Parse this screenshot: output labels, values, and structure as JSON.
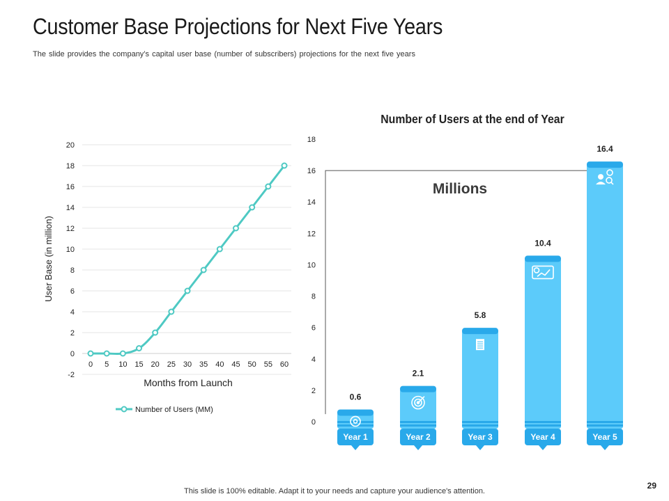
{
  "page": {
    "title": "Customer Base Projections for Next Five Years",
    "subtitle": "The slide provides  the company’s capital user base (number  of subscribers)  projections  for the next five  years",
    "footer": "This slide is 100% editable. Adapt it to your needs and capture your audience's attention.",
    "page_number": "29"
  },
  "colors": {
    "line": "#4ec9c3",
    "bar": "#5ccbfa",
    "bar_dark": "#29a9ea",
    "grid": "#e6e6e6"
  },
  "chart_data": [
    {
      "type": "line",
      "title": "",
      "xlabel": "Months from Launch",
      "ylabel": "User Base (in million)",
      "x": [
        0,
        5,
        10,
        15,
        20,
        25,
        30,
        35,
        40,
        45,
        50,
        55,
        60
      ],
      "x_tick_labels": [
        "0",
        "5",
        "10",
        "15",
        "20",
        "25",
        "30",
        "35",
        "40",
        "45",
        "50",
        "55",
        "60"
      ],
      "y_tick_labels": [
        "-2",
        "0",
        "2",
        "4",
        "6",
        "8",
        "10",
        "12",
        "14",
        "16",
        "18",
        "20"
      ],
      "ylim": [
        -2,
        20
      ],
      "grid": true,
      "legend_position": "bottom-left",
      "series": [
        {
          "name": "Number of Users (MM)",
          "values": [
            0,
            0,
            0,
            0.5,
            2,
            4,
            6,
            8,
            10,
            12,
            14,
            16,
            18
          ]
        }
      ]
    },
    {
      "type": "bar",
      "title": "Number of Users at the end of Year",
      "annotation": "Millions",
      "categories": [
        "Year 1",
        "Year 2",
        "Year 3",
        "Year 4",
        "Year 5"
      ],
      "values": [
        0.6,
        2.1,
        5.8,
        10.4,
        16.4
      ],
      "value_labels": [
        "0.6",
        "2.1",
        "5.8",
        "10.4",
        "16.4"
      ],
      "y_tick_labels": [
        "0",
        "2",
        "4",
        "6",
        "8",
        "10",
        "12",
        "14",
        "16",
        "18"
      ],
      "ylim": [
        0,
        18
      ],
      "icons": [
        "gear-icon",
        "target-icon",
        "document-icon",
        "analytics-icon",
        "team-search-icon"
      ]
    }
  ]
}
